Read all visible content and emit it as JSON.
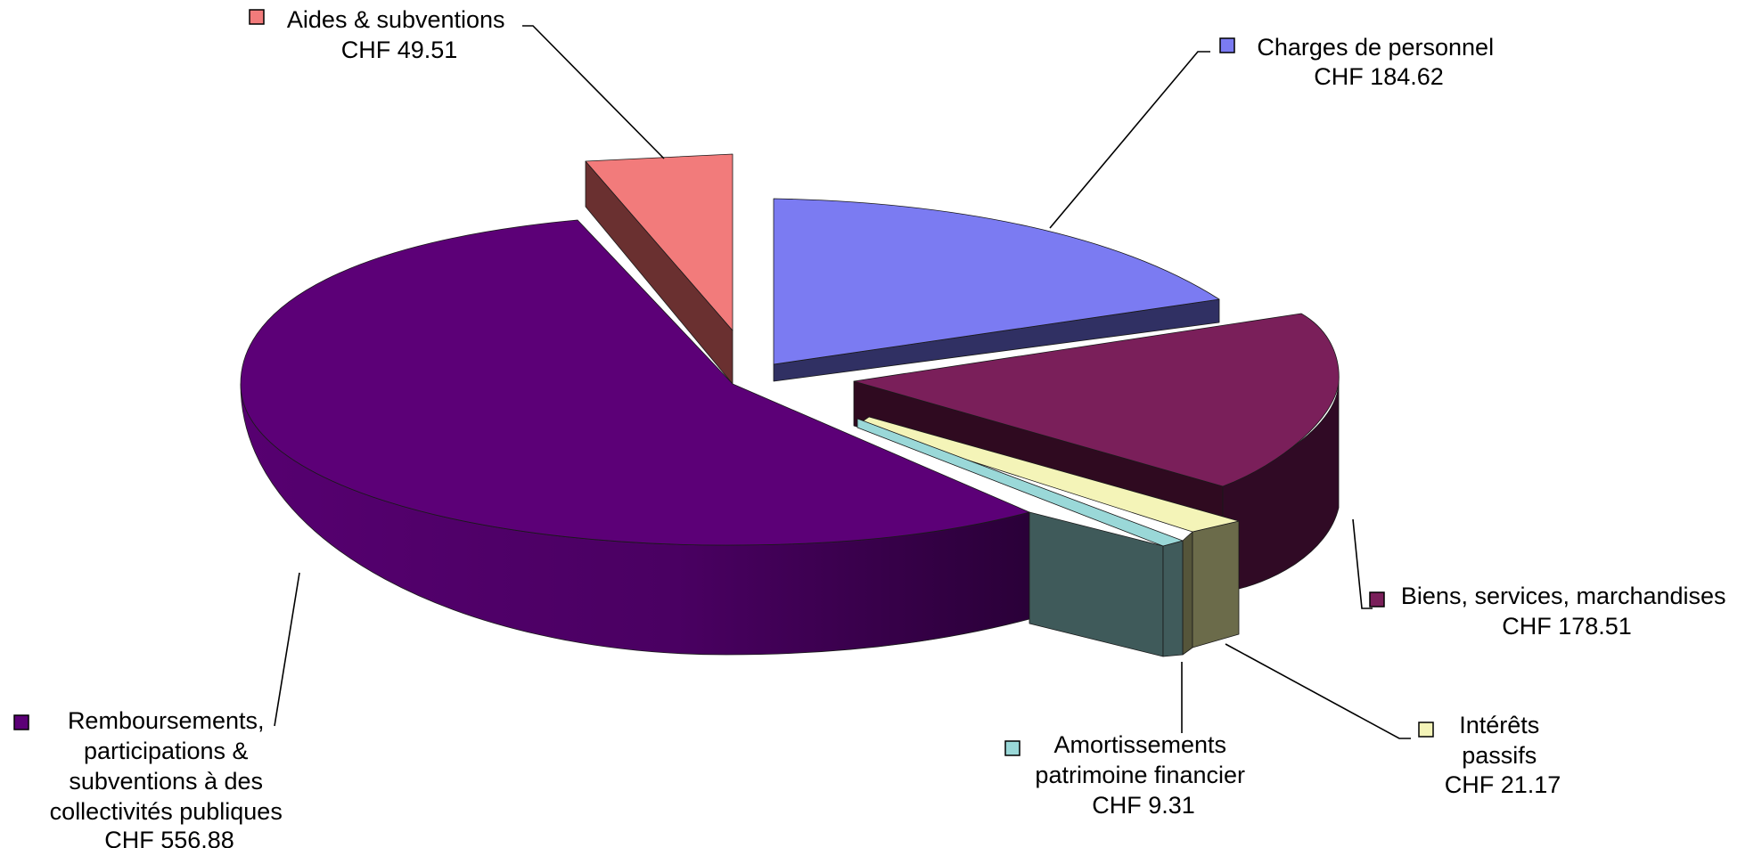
{
  "chart_data": {
    "type": "pie",
    "style": "3d-exploded",
    "currency": "CHF",
    "slices": [
      {
        "name": "Charges de personnel",
        "value_label": "CHF 184.62",
        "value": 184.62,
        "color": "#7b7bf2",
        "exploded": true
      },
      {
        "name": "Biens, services, marchandises",
        "value_label": "CHF 178.51",
        "value": 178.51,
        "color": "#7a1f5a",
        "exploded": true
      },
      {
        "name": "Intérêts passifs",
        "value_label": "CHF 21.17",
        "value": 21.17,
        "color": "#f4f4b8",
        "exploded": true
      },
      {
        "name": "Amortissements patrimoine financier",
        "value_label": "CHF 9.31",
        "value": 9.31,
        "color": "#9ad8d8",
        "exploded": true
      },
      {
        "name": "Remboursements, participations & subventions à des collectivités publiques",
        "value_label": "CHF 556.88",
        "value": 556.88,
        "color": "#5c0077",
        "exploded": false
      },
      {
        "name": "Aides & subventions",
        "value_label": "CHF 49.51",
        "value": 49.51,
        "color": "#f27b7b",
        "exploded": true
      }
    ],
    "legend": [
      {
        "lines": [
          "Aides & subventions",
          "CHF 49.51"
        ]
      },
      {
        "lines": [
          "Charges de personnel",
          "CHF 184.62"
        ]
      },
      {
        "lines": [
          "Biens, services, marchandises",
          "CHF 178.51"
        ]
      },
      {
        "lines": [
          "Intérêts",
          "passifs",
          "CHF 21.17"
        ]
      },
      {
        "lines": [
          "Amortissements",
          "patrimoine financier",
          "CHF 9.31"
        ]
      },
      {
        "lines": [
          "Remboursements,",
          "participations &",
          "subventions à des",
          "collectivités publiques",
          "CHF 556.88"
        ]
      }
    ]
  }
}
